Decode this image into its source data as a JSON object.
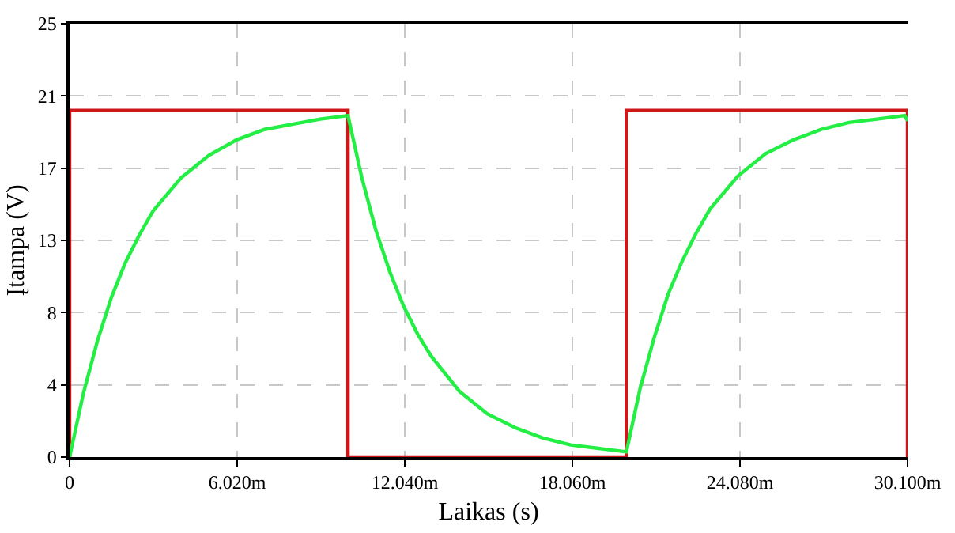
{
  "chart_data": {
    "type": "line",
    "xlabel": "Laikas (s)",
    "ylabel": "Įtampa (V)",
    "xlim": [
      0,
      30.1
    ],
    "xticks": [
      0,
      {
        "value": 6.02,
        "label": "6.020m"
      },
      {
        "value": 12.04,
        "label": "12.040m"
      },
      {
        "value": 18.06,
        "label": "18.060m"
      },
      {
        "value": 24.08,
        "label": "24.080m"
      },
      {
        "value": 30.1,
        "label": "30.100m"
      }
    ],
    "ylim": [
      0,
      25
    ],
    "yticks": [
      0,
      {
        "value": 4.1667,
        "label": "4"
      },
      {
        "value": 8.3333,
        "label": "8"
      },
      {
        "value": 12.5,
        "label": "13"
      },
      {
        "value": 16.6667,
        "label": "17"
      },
      {
        "value": 20.8333,
        "label": "21"
      },
      25
    ],
    "grid": true,
    "marker": "none",
    "line_style": "solid",
    "series": [
      {
        "color": "#cc1818",
        "x": [
          0,
          0,
          10,
          10,
          20,
          20,
          30.1,
          30.1
        ],
        "values": [
          0,
          20,
          20,
          0,
          0,
          20,
          20,
          0
        ]
      },
      {
        "color": "#22ee44",
        "x": [
          0,
          0.5,
          1,
          1.5,
          2,
          2.5,
          3,
          4,
          5,
          6,
          7,
          8,
          9,
          10,
          10.5,
          11,
          11.5,
          12,
          12.5,
          13,
          14,
          15,
          16,
          17,
          18,
          19,
          20,
          20.5,
          21,
          21.5,
          22,
          22.5,
          23,
          24,
          25,
          26,
          27,
          28,
          29,
          30,
          30.1
        ],
        "values": [
          0,
          3.7,
          6.7,
          9.2,
          11.2,
          12.8,
          14.2,
          16.1,
          17.4,
          18.3,
          18.9,
          19.2,
          19.5,
          19.7,
          16.1,
          13.1,
          10.7,
          8.7,
          7.1,
          5.8,
          3.8,
          2.5,
          1.7,
          1.1,
          0.7,
          0.5,
          0.3,
          4.0,
          6.9,
          9.4,
          11.3,
          12.9,
          14.3,
          16.2,
          17.5,
          18.3,
          18.9,
          19.3,
          19.5,
          19.7,
          19.4
        ]
      }
    ]
  }
}
